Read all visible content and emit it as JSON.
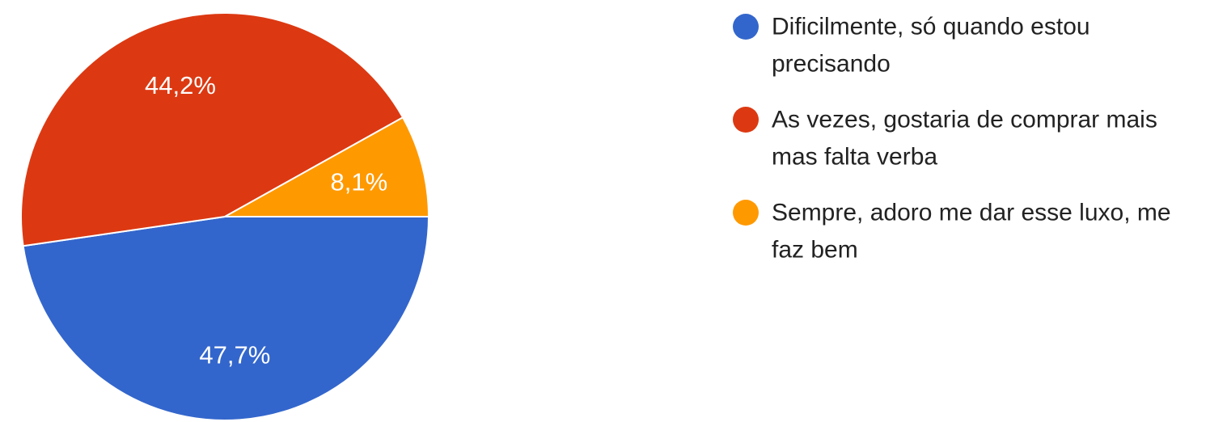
{
  "chart_data": {
    "type": "pie",
    "series": [
      {
        "values": [
          47.7,
          44.2,
          8.1
        ],
        "labels": [
          "47,7%",
          "44,2%",
          "8,1%"
        ],
        "colors": [
          "#3366cc",
          "#dc3912",
          "#ff9900"
        ]
      }
    ],
    "legend": {
      "placement": "right",
      "items": [
        {
          "lines": [
            "Dificilmente, só quando estou",
            "precisando"
          ],
          "color": "#3366cc"
        },
        {
          "lines": [
            "As vezes, gostaria de comprar mais",
            "mas falta verba"
          ],
          "color": "#dc3912"
        },
        {
          "lines": [
            "Sempre, adoro me dar esse luxo, me",
            "faz bem"
          ],
          "color": "#ff9900"
        }
      ]
    },
    "start_angle": "3 o'clock",
    "direction": "clockwise"
  }
}
